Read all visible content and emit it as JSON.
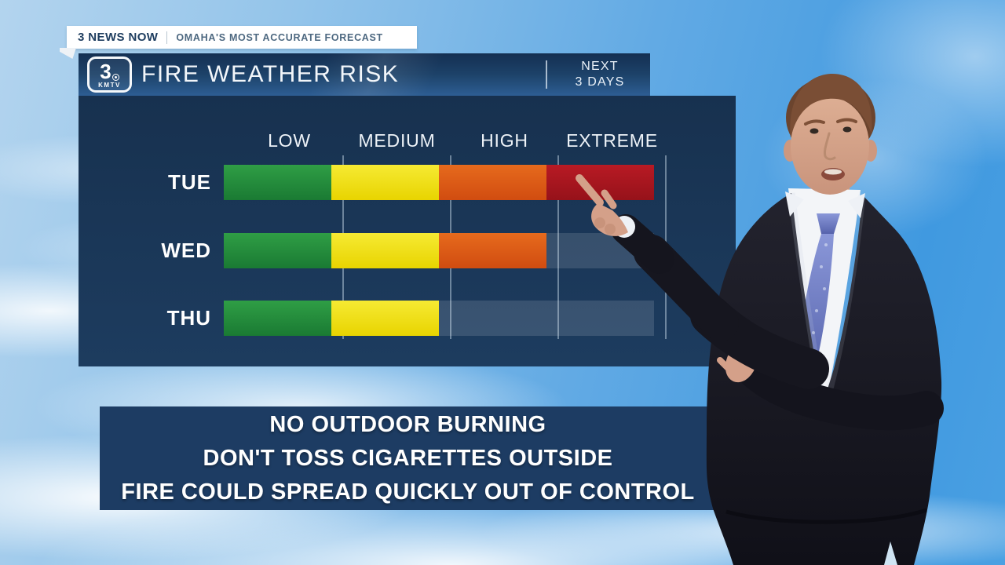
{
  "ticker": {
    "brand": "3 NEWS NOW",
    "tagline": "OMAHA'S MOST ACCURATE FORECAST"
  },
  "header": {
    "logo": {
      "channel": "3",
      "station": "KMTV"
    },
    "title": "FIRE WEATHER RISK",
    "next_line1": "NEXT",
    "next_line2": "3 DAYS"
  },
  "chart_data": {
    "type": "heatmap",
    "title": "Fire Weather Risk",
    "subtitle": "Next 3 Days",
    "columns": [
      {
        "key": "low",
        "label": "LOW",
        "color_top": "#2f9e45",
        "color_bottom": "#1a7a33"
      },
      {
        "key": "medium",
        "label": "MEDIUM",
        "color_top": "#f6ea33",
        "color_bottom": "#e8d400"
      },
      {
        "key": "high",
        "label": "HIGH",
        "color_top": "#e66a1d",
        "color_bottom": "#d14c10"
      },
      {
        "key": "extreme",
        "label": "EXTREME",
        "color_top": "#b81a24",
        "color_bottom": "#96121a"
      }
    ],
    "rows": [
      {
        "day": "TUE",
        "levels": [
          "low",
          "medium",
          "high",
          "extreme"
        ],
        "max_risk": "extreme"
      },
      {
        "day": "WED",
        "levels": [
          "low",
          "medium",
          "high"
        ],
        "max_risk": "high"
      },
      {
        "day": "THU",
        "levels": [
          "low",
          "medium"
        ],
        "max_risk": "medium"
      }
    ],
    "empty_cell_color": "rgba(255,255,255,0.13)",
    "grid": "vertical-separators",
    "legend_position": "top"
  },
  "advisory": {
    "lines": [
      "NO OUTDOOR BURNING",
      "DON'T TOSS CIGARETTES OUTSIDE",
      "FIRE COULD SPREAD QUICKLY OUT OF CONTROL"
    ]
  },
  "colors": {
    "panel_navy": "#17314F",
    "advisory_navy": "#1D3C63",
    "titlebar_blue_top": "#142F52",
    "titlebar_blue_bottom": "#2D5D93",
    "sky_blue": "#4099E0",
    "ticker_text": "#1E3D5F"
  }
}
